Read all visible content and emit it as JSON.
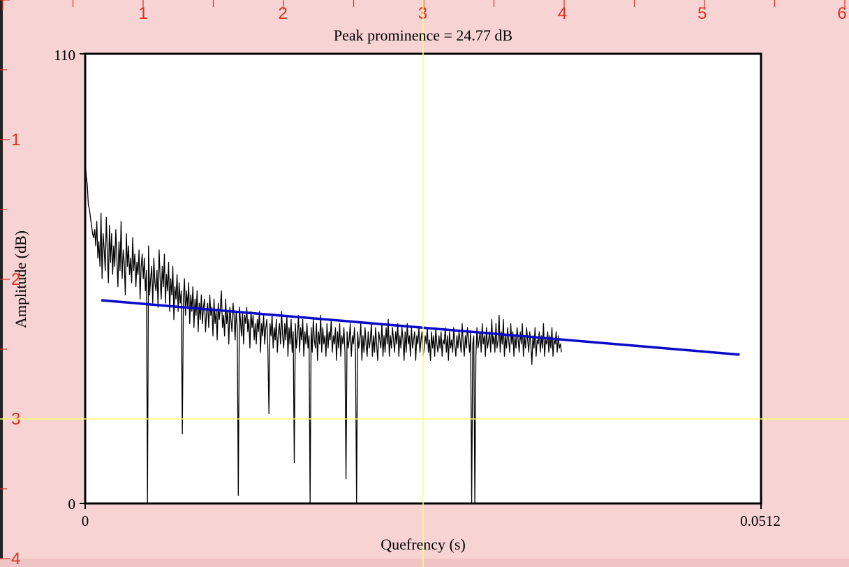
{
  "chart_data": {
    "type": "line",
    "title": "Peak prominence = 24.77 dB",
    "xlabel": "Quefrency (s)",
    "ylabel": "Amplitude (dB)",
    "xlim": [
      0,
      0.0512
    ],
    "ylim": [
      0,
      110
    ],
    "x_tick_labels": [
      "0",
      "0.0512"
    ],
    "y_tick_labels": [
      "0",
      "110"
    ],
    "grid": false,
    "series": [
      {
        "kind": "cepstrum",
        "x_step": 8e-05,
        "values": [
          85,
          80,
          78,
          73,
          72,
          70,
          68,
          66,
          65,
          67,
          63,
          69,
          60,
          64,
          58,
          71,
          55,
          66,
          62,
          57,
          70,
          61,
          54,
          68,
          59,
          66,
          56,
          63,
          58,
          67,
          60,
          53,
          64,
          57,
          69,
          55,
          62,
          59,
          51,
          66,
          58,
          63,
          56,
          60,
          54,
          65,
          57,
          61,
          53,
          59,
          56,
          62,
          50,
          58,
          61,
          55,
          60,
          52,
          57,
          0,
          63,
          51,
          55,
          58,
          49,
          60,
          54,
          52,
          57,
          48,
          62,
          55,
          50,
          58,
          53,
          61,
          49,
          56,
          52,
          59,
          47,
          55,
          51,
          58,
          45,
          53,
          50,
          56,
          47,
          54,
          49,
          52,
          17,
          50,
          55,
          46,
          52,
          48,
          54,
          44,
          51,
          47,
          53,
          43,
          50,
          46,
          52,
          42,
          49,
          45,
          51,
          44,
          48,
          50,
          42,
          47,
          49,
          43,
          51,
          46,
          48,
          41,
          50,
          44,
          47,
          40,
          49,
          45,
          48,
          52,
          43,
          46,
          41,
          50,
          44,
          47,
          39,
          48,
          45,
          42,
          49,
          46,
          40,
          47,
          43,
          2,
          48,
          45,
          41,
          47,
          39,
          46,
          44,
          48,
          42,
          45,
          38,
          47,
          43,
          46,
          40,
          44,
          39,
          45,
          42,
          47,
          37,
          44,
          41,
          46,
          39,
          43,
          45,
          38,
          22,
          44,
          41,
          46,
          38,
          43,
          40,
          45,
          37,
          42,
          44,
          39,
          47,
          41,
          38,
          44,
          40,
          46,
          36,
          43,
          39,
          45,
          37,
          42,
          10,
          44,
          38,
          41,
          46,
          37,
          43,
          40,
          45,
          36,
          42,
          39,
          44,
          38,
          41,
          0,
          43,
          37,
          45,
          40,
          38,
          44,
          35,
          42,
          39,
          46,
          37,
          43,
          39,
          41,
          36,
          44,
          38,
          42,
          40,
          45,
          37,
          41,
          39,
          43,
          35,
          42,
          38,
          44,
          36,
          41,
          39,
          43,
          37,
          6,
          42,
          38,
          40,
          44,
          36,
          41,
          39,
          43,
          37,
          0,
          42,
          38,
          40,
          44,
          35,
          41,
          37,
          43,
          39,
          36,
          42,
          38,
          40,
          44,
          36,
          41,
          37,
          43,
          39,
          35,
          42,
          40,
          38,
          44,
          36,
          41,
          37,
          43,
          39,
          45,
          36,
          41,
          38,
          43,
          40,
          37,
          42,
          39,
          44,
          36,
          41,
          38,
          43,
          40,
          35,
          42,
          37,
          44,
          39,
          41,
          36,
          43,
          38,
          40,
          42,
          35,
          41,
          39,
          43,
          37,
          40,
          42,
          36,
          38,
          41,
          39,
          43,
          37,
          40,
          35,
          42,
          38,
          41,
          36,
          43,
          39,
          37,
          41,
          38,
          42,
          36,
          40,
          39,
          43,
          37,
          41,
          35,
          42,
          38,
          40,
          37,
          43,
          39,
          36,
          41,
          38,
          42,
          40,
          37,
          44,
          39,
          36,
          41,
          38,
          43,
          40,
          37,
          42,
          0,
          39,
          41,
          0,
          36,
          43,
          38,
          40,
          42,
          37,
          44,
          39,
          41,
          36,
          43,
          38,
          40,
          42,
          37,
          45,
          39,
          41,
          37,
          44,
          38,
          40,
          46,
          37,
          42,
          39,
          45,
          36,
          41,
          38,
          43,
          40,
          37,
          44,
          39,
          42,
          36,
          41,
          38,
          43,
          40,
          37,
          42,
          39,
          44,
          36,
          41,
          38,
          43,
          40,
          37,
          42,
          39,
          34,
          41,
          38,
          43,
          36,
          40,
          39,
          42,
          37,
          41,
          38,
          44,
          36,
          40,
          39,
          42,
          37,
          41,
          38,
          43,
          36,
          40,
          39,
          42,
          37,
          41,
          38,
          39,
          37
        ]
      },
      {
        "kind": "regression",
        "x": [
          0.00122,
          0.04958
        ],
        "y": [
          49.7,
          36.4
        ]
      }
    ],
    "colors": {
      "cepstrum": "#000000",
      "regression": "#0a0ac8",
      "background": "#f7d3d3",
      "plot_area": "#ffffff",
      "cursor": "#ffff66",
      "ruler": "#e03020"
    }
  },
  "ruler": {
    "top_labels": [
      "1",
      "2",
      "3",
      "4",
      "5",
      "6"
    ],
    "left_labels": [
      "1",
      "2",
      "3",
      "4"
    ]
  }
}
